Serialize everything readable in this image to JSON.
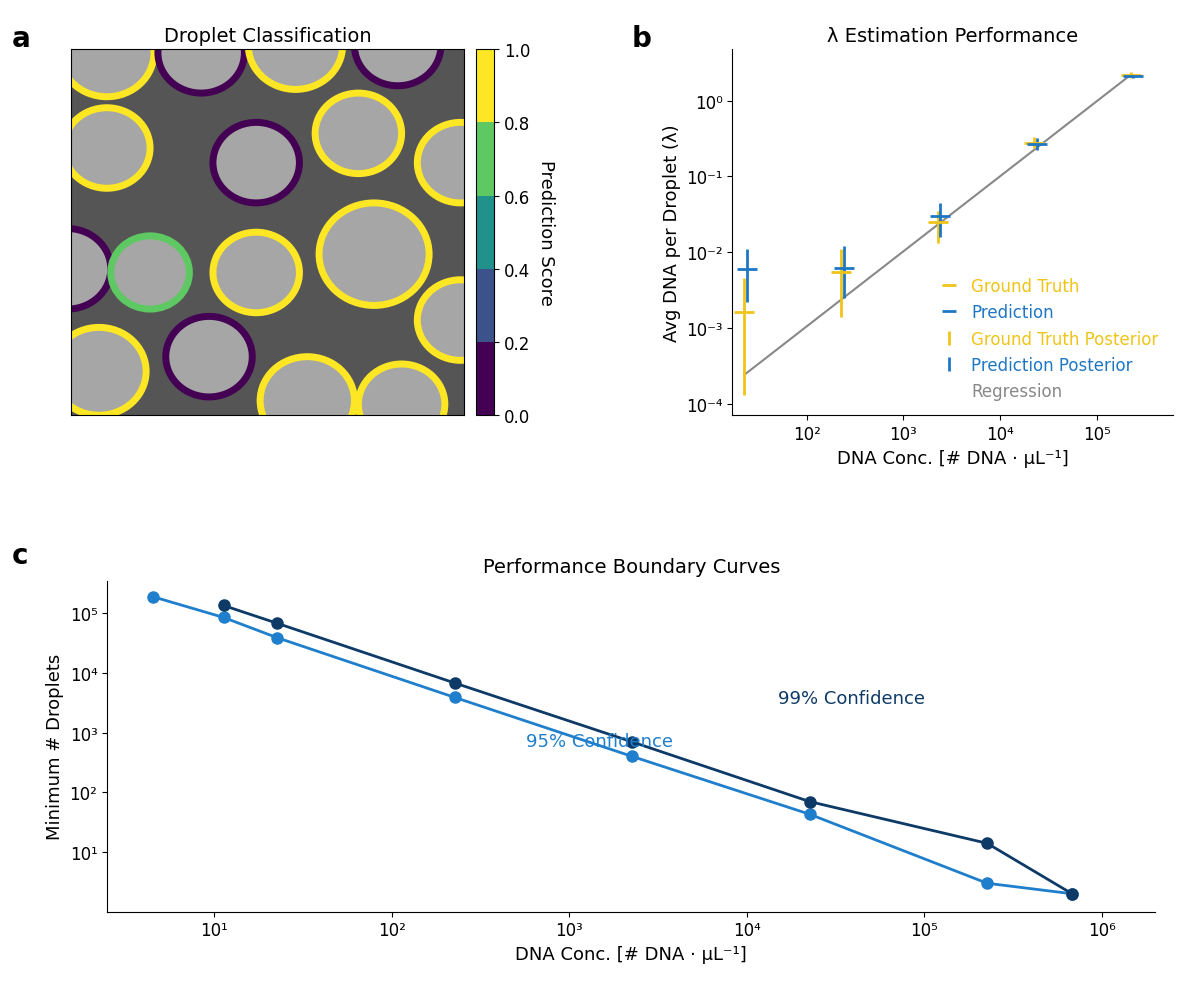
{
  "chart_data": [
    {
      "type": "image",
      "panel": "a",
      "title": "Droplet Classification",
      "tick_labels": false,
      "xlim": [
        0,
        100
      ],
      "ylim": [
        100,
        0
      ],
      "droplets": [
        {
          "x": 9,
          "y": 1,
          "r": 12,
          "score": 0.9
        },
        {
          "x": 33,
          "y": 1,
          "r": 11,
          "score": 0.1
        },
        {
          "x": 57,
          "y": -1,
          "r": 12,
          "score": 0.9
        },
        {
          "x": 83,
          "y": -1,
          "r": 11,
          "score": 0.1
        },
        {
          "x": 9,
          "y": 27,
          "r": 11,
          "score": 0.9
        },
        {
          "x": 47,
          "y": 31,
          "r": 11,
          "score": 0.1
        },
        {
          "x": 73,
          "y": 23,
          "r": 11,
          "score": 0.9
        },
        {
          "x": 99,
          "y": 31,
          "r": 11,
          "score": 0.9
        },
        {
          "x": -1,
          "y": 60,
          "r": 11,
          "score": 0.1
        },
        {
          "x": 20,
          "y": 61,
          "r": 10,
          "score": 0.7
        },
        {
          "x": 47,
          "y": 61,
          "r": 11,
          "score": 0.9
        },
        {
          "x": 77,
          "y": 56,
          "r": 14,
          "score": 0.9
        },
        {
          "x": 99,
          "y": 74,
          "r": 11,
          "score": 0.9
        },
        {
          "x": 7,
          "y": 88,
          "r": 12,
          "score": 0.9
        },
        {
          "x": 35,
          "y": 84,
          "r": 11,
          "score": 0.1
        },
        {
          "x": 60,
          "y": 96,
          "r": 12,
          "score": 0.9
        },
        {
          "x": 84,
          "y": 97,
          "r": 11,
          "score": 0.9
        }
      ],
      "colorbar": {
        "label": "Prediction Score",
        "range": [
          0,
          1
        ],
        "colors": [
          "#440154",
          "#3b528b",
          "#21918c",
          "#5ec962",
          "#fde725"
        ],
        "ticks": [
          {
            "value": 0,
            "label": "0.0"
          },
          {
            "value": 0.2,
            "label": "0.2"
          },
          {
            "value": 0.4,
            "label": "0.4"
          },
          {
            "value": 0.6,
            "label": "0.6"
          },
          {
            "value": 0.8,
            "label": "0.8"
          },
          {
            "value": 1,
            "label": "1.0"
          }
        ]
      }
    },
    {
      "type": "errorbar",
      "panel": "b",
      "title": "λ Estimation Performance",
      "log": true,
      "x_label": "DNA Conc. [# DNA · μL⁻¹]",
      "y_label": "Avg DNA per Droplet (λ)",
      "xlim": [
        17,
        620000
      ],
      "ylim": [
        7e-05,
        4.8
      ],
      "xticks": [
        {
          "value": 100,
          "label": "10²"
        },
        {
          "value": 1000,
          "label": "10³"
        },
        {
          "value": 10000,
          "label": "10⁴"
        },
        {
          "value": 100000,
          "label": "10⁵"
        }
      ],
      "yticks": [
        {
          "value": 0.0001,
          "label": "10⁻⁴"
        },
        {
          "value": 0.001,
          "label": "10⁻³"
        },
        {
          "value": 0.01,
          "label": "10⁻²"
        },
        {
          "value": 0.1,
          "label": "10⁻¹"
        },
        {
          "value": 1,
          "label": "10⁰"
        }
      ],
      "legend": "lower right",
      "series": [
        {
          "name": "Ground Truth",
          "posterior_name": "Ground Truth Posterior",
          "color": "#f0c419",
          "marker": "dash",
          "x": [
            22.6,
            226,
            2260,
            22600,
            226000
          ],
          "values": [
            0.0016,
            0.0055,
            0.025,
            0.28,
            2.2
          ],
          "lower": [
            0.00013,
            0.0014,
            0.013,
            0.24,
            2.0
          ],
          "upper": [
            0.0045,
            0.011,
            0.035,
            0.33,
            2.4
          ]
        },
        {
          "name": "Prediction",
          "posterior_name": "Prediction Posterior",
          "color": "#1f77c4",
          "marker": "dash",
          "x": [
            24,
            240,
            2400,
            24000,
            240000
          ],
          "values": [
            0.006,
            0.0062,
            0.03,
            0.27,
            2.1
          ],
          "lower": [
            0.0022,
            0.0025,
            0.016,
            0.22,
            2.0
          ],
          "upper": [
            0.011,
            0.012,
            0.045,
            0.32,
            2.2
          ]
        },
        {
          "name": "Regression",
          "type": "line",
          "color": "#888888",
          "x": [
            22.6,
            226000
          ],
          "values": [
            0.00024,
            2.2
          ]
        }
      ]
    },
    {
      "type": "line",
      "panel": "c",
      "title": "Performance Boundary Curves",
      "log": true,
      "x_label": "DNA Conc. [# DNA · μL⁻¹]",
      "y_label": "Minimum # Droplets",
      "xlim": [
        2.5,
        2000000
      ],
      "ylim": [
        1,
        350000
      ],
      "xticks": [
        {
          "value": 10,
          "label": "10¹"
        },
        {
          "value": 100,
          "label": "10²"
        },
        {
          "value": 1000,
          "label": "10³"
        },
        {
          "value": 10000,
          "label": "10⁴"
        },
        {
          "value": 100000,
          "label": "10⁵"
        },
        {
          "value": 1000000,
          "label": "10⁶"
        }
      ],
      "yticks": [
        {
          "value": 10,
          "label": "10¹"
        },
        {
          "value": 100,
          "label": "10²"
        },
        {
          "value": 1000,
          "label": "10³"
        },
        {
          "value": 10000,
          "label": "10⁴"
        },
        {
          "value": 100000,
          "label": "10⁵"
        }
      ],
      "series": [
        {
          "name": "95% Confidence",
          "color": "#1f7fcc",
          "marker": "o",
          "x": [
            4.5,
            11.3,
            22.6,
            226,
            2260,
            22600,
            226000,
            680000
          ],
          "values": [
            190000,
            85000,
            39000,
            3900,
            400,
            43,
            3,
            2
          ]
        },
        {
          "name": "99% Confidence",
          "color": "#0d3a66",
          "marker": "o",
          "x": [
            11.3,
            22.6,
            226,
            2260,
            22600,
            226000,
            680000
          ],
          "values": [
            135000,
            68000,
            6800,
            700,
            70,
            14,
            2
          ]
        }
      ]
    }
  ]
}
